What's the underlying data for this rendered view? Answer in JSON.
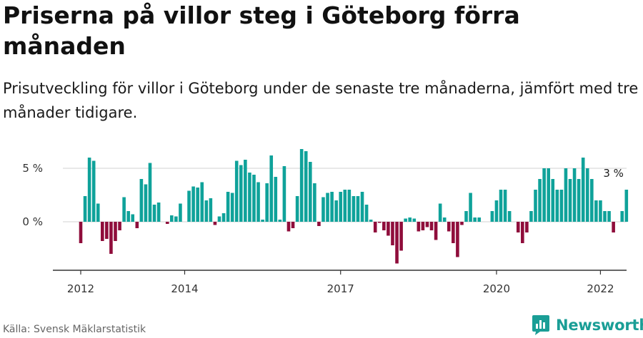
{
  "title": "Priserna på villor steg i Göteborg förra månaden",
  "subtitle": "Prisutveckling för villor i Göteborg under de senaste tre månaderna, jämfört med tre månader tidigare.",
  "source": "Källa: Svensk Mäklarstatistik",
  "brand": "Newsworthy",
  "colors": {
    "positive": "#0fa29a",
    "negative": "#8f0d3b",
    "grid": "#d9d9d9",
    "brand": "#1a9e96"
  },
  "chart_data": {
    "type": "bar",
    "x_start": "2012-01",
    "x_end": "2022-04",
    "ylim": [
      -4.5,
      7
    ],
    "y_ticks": [
      {
        "value": 0,
        "label": "0 %"
      },
      {
        "value": 5,
        "label": "5 %"
      }
    ],
    "x_ticks": [
      {
        "value": "2012-01",
        "label": "2012"
      },
      {
        "value": "2014-01",
        "label": "2014"
      },
      {
        "value": "2017-01",
        "label": "2017"
      },
      {
        "value": "2020-01",
        "label": "2020"
      },
      {
        "value": "2022-01",
        "label": "2022"
      }
    ],
    "annotation": {
      "x": "2022-04",
      "value": 3,
      "label": "3 %"
    },
    "series": [
      {
        "values": [
          -2.0,
          2.4,
          6.0,
          5.7,
          1.7,
          -1.8,
          -1.6,
          -3.0,
          -1.8,
          -0.8,
          2.3,
          1.0,
          0.7,
          -0.6,
          4.0,
          3.5,
          5.5,
          1.6,
          1.8,
          0.0,
          -0.2,
          0.6,
          0.5,
          1.7,
          0.0,
          2.9,
          3.3,
          3.2,
          3.7,
          2.0,
          2.2,
          -0.3,
          0.5,
          0.8,
          2.8,
          2.7,
          5.7,
          5.3,
          5.8,
          4.6,
          4.4,
          3.7,
          0.2,
          3.6,
          6.2,
          4.2,
          0.2,
          5.2,
          -0.9,
          -0.6,
          2.4,
          6.8,
          6.6,
          5.6,
          3.6,
          -0.4,
          2.3,
          2.7,
          2.8,
          2.0,
          2.8,
          3.0,
          3.0,
          2.4,
          2.4,
          2.8,
          1.6,
          0.2,
          -1.0,
          -0.1,
          -0.8,
          -1.3,
          -2.2,
          -3.9,
          -2.7,
          0.3,
          0.4,
          0.3,
          -0.9,
          -0.8,
          -0.5,
          -0.8,
          -1.7,
          1.7,
          0.4,
          -0.9,
          -2.0,
          -3.3,
          -0.3,
          1.0,
          2.7,
          0.4,
          0.4,
          0.0,
          0.0,
          1.0,
          2.0,
          3.0,
          3.0,
          1.0,
          0.0,
          -1.0,
          -2.0,
          -1.0,
          1.0,
          3.0,
          4.0,
          5.0,
          5.0,
          4.0,
          3.0,
          3.0,
          5.0,
          4.0,
          5.0,
          4.0,
          6.0,
          5.0,
          4.0,
          2.0,
          2.0,
          1.0,
          1.0,
          -1.0,
          0.0,
          1.0,
          3.0
        ]
      }
    ]
  }
}
